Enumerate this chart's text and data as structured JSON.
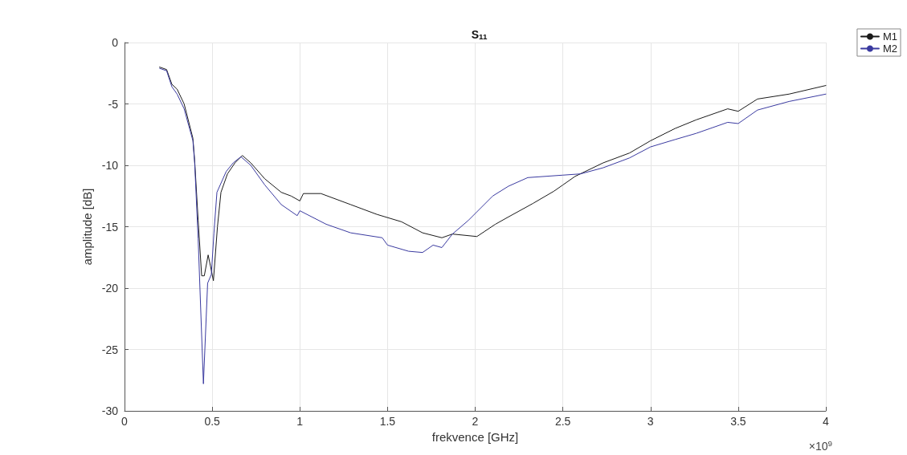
{
  "chart_data": {
    "type": "line",
    "title": "S$_{11}$",
    "xlabel": "frekvence [GHz]",
    "ylabel": "amplitude [dB]",
    "annotations": [
      "×10$^{9}$"
    ],
    "xlim": [
      0,
      4
    ],
    "xticks": [
      0,
      0.5,
      1,
      1.5,
      2,
      2.5,
      3,
      3.5,
      4
    ],
    "ylim": [
      -30,
      0
    ],
    "yticks": [
      -30,
      -25,
      -20,
      -15,
      -10,
      -5,
      0
    ],
    "grid": true,
    "legend": "top right",
    "marker": "none",
    "line_style": "solid",
    "series": [
      {
        "name": "M1",
        "color": "#1a1a1a",
        "x": [
          0.2,
          0.24,
          0.27,
          0.3,
          0.34,
          0.39,
          0.4,
          0.42,
          0.44,
          0.455,
          0.477,
          0.49,
          0.507,
          0.53,
          0.55,
          0.587,
          0.63,
          0.672,
          0.72,
          0.8,
          0.894,
          0.95,
          1.0,
          1.02,
          1.12,
          1.29,
          1.44,
          1.58,
          1.7,
          1.81,
          1.87,
          2.01,
          2.115,
          2.19,
          2.33,
          2.45,
          2.5,
          2.57,
          2.73,
          2.88,
          3.0,
          3.14,
          3.26,
          3.44,
          3.5,
          3.61,
          3.79,
          4.0
        ],
        "values": [
          -2.0,
          -2.2,
          -3.4,
          -3.8,
          -5.0,
          -7.8,
          -9.6,
          -14.5,
          -19.0,
          -19.0,
          -17.3,
          -18.2,
          -19.4,
          -15.0,
          -12.2,
          -10.7,
          -9.8,
          -9.2,
          -9.8,
          -11.1,
          -12.2,
          -12.5,
          -12.9,
          -12.3,
          -12.3,
          -13.2,
          -14.0,
          -14.6,
          -15.5,
          -15.9,
          -15.6,
          -15.8,
          -14.8,
          -14.2,
          -13.1,
          -12.1,
          -11.6,
          -10.9,
          -9.8,
          -9.0,
          -8.0,
          -7.0,
          -6.3,
          -5.4,
          -5.6,
          -4.6,
          -4.2,
          -3.5
        ]
      },
      {
        "name": "M2",
        "color": "#3a3aa0",
        "x": [
          0.2,
          0.24,
          0.27,
          0.3,
          0.34,
          0.39,
          0.4,
          0.42,
          0.45,
          0.474,
          0.495,
          0.51,
          0.527,
          0.58,
          0.62,
          0.664,
          0.72,
          0.8,
          0.894,
          0.985,
          1.0,
          1.15,
          1.29,
          1.47,
          1.5,
          1.62,
          1.7,
          1.76,
          1.81,
          1.87,
          1.96,
          2.1,
          2.19,
          2.3,
          2.5,
          2.6,
          2.73,
          2.88,
          3.0,
          3.14,
          3.26,
          3.44,
          3.5,
          3.61,
          3.79,
          4.0
        ],
        "values": [
          -2.1,
          -2.3,
          -3.6,
          -4.2,
          -5.4,
          -8.0,
          -9.8,
          -16.0,
          -27.8,
          -19.6,
          -18.9,
          -15.5,
          -12.2,
          -10.5,
          -9.8,
          -9.3,
          -10.0,
          -11.6,
          -13.2,
          -14.1,
          -13.7,
          -14.8,
          -15.5,
          -15.9,
          -16.5,
          -17.0,
          -17.1,
          -16.5,
          -16.7,
          -15.6,
          -14.5,
          -12.5,
          -11.7,
          -11.0,
          -10.8,
          -10.7,
          -10.2,
          -9.4,
          -8.5,
          -7.9,
          -7.4,
          -6.5,
          -6.6,
          -5.5,
          -4.8,
          -4.2
        ]
      }
    ]
  }
}
